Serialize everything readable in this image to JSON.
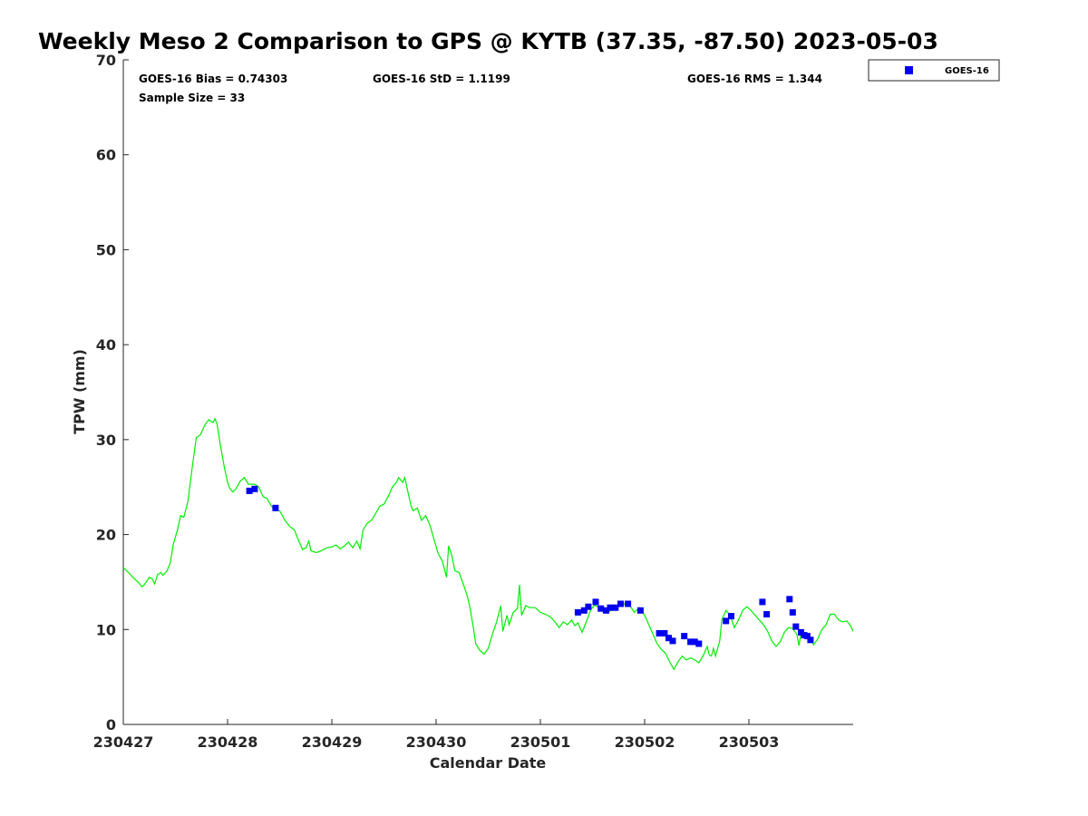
{
  "chart_data": {
    "type": "scatter",
    "title": "Weekly Meso 2 Comparison to GPS @ KYTB (37.35, -87.50) 2023-05-03",
    "xlabel": "Calendar Date",
    "ylabel": "TPW (mm)",
    "x_tick_labels": [
      "230427",
      "230428",
      "230429",
      "230430",
      "230501",
      "230502",
      "230503"
    ],
    "xlim": [
      0,
      7
    ],
    "ylim": [
      0,
      70
    ],
    "y_ticks": [
      0,
      10,
      20,
      30,
      40,
      50,
      60,
      70
    ],
    "grid": false,
    "legend_position": "top-right, outside plot",
    "stats": {
      "bias": "GOES-16 Bias = 0.74303",
      "std": "GOES-16 StD = 1.1199",
      "rms": "GOES-16 RMS = 1.344",
      "sample_size": "Sample Size = 33"
    },
    "series": [
      {
        "name": "GOES-16",
        "kind": "scatter",
        "marker": "square",
        "color": "#0000ee",
        "legend": true,
        "points": [
          [
            1.21,
            24.6
          ],
          [
            1.26,
            24.8
          ],
          [
            1.46,
            22.8
          ],
          [
            4.36,
            11.8
          ],
          [
            4.42,
            12.0
          ],
          [
            4.46,
            12.4
          ],
          [
            4.53,
            12.9
          ],
          [
            4.58,
            12.2
          ],
          [
            4.63,
            12.0
          ],
          [
            4.67,
            12.3
          ],
          [
            4.72,
            12.3
          ],
          [
            4.77,
            12.7
          ],
          [
            4.84,
            12.7
          ],
          [
            4.96,
            12.0
          ],
          [
            5.14,
            9.6
          ],
          [
            5.19,
            9.6
          ],
          [
            5.23,
            9.1
          ],
          [
            5.27,
            8.8
          ],
          [
            5.38,
            9.3
          ],
          [
            5.44,
            8.7
          ],
          [
            5.48,
            8.7
          ],
          [
            5.52,
            8.5
          ],
          [
            5.78,
            10.9
          ],
          [
            5.83,
            11.4
          ],
          [
            6.13,
            12.9
          ],
          [
            6.17,
            11.6
          ],
          [
            6.39,
            13.2
          ],
          [
            6.42,
            11.8
          ],
          [
            6.45,
            10.3
          ],
          [
            6.5,
            9.7
          ],
          [
            6.53,
            9.4
          ],
          [
            6.56,
            9.3
          ],
          [
            6.59,
            8.9
          ]
        ]
      },
      {
        "name": "",
        "kind": "line",
        "color": "#00ee00",
        "legend": false,
        "points": [
          [
            0.0,
            16.5
          ],
          [
            0.05,
            16.0
          ],
          [
            0.1,
            15.4
          ],
          [
            0.15,
            14.9
          ],
          [
            0.18,
            14.5
          ],
          [
            0.2,
            14.7
          ],
          [
            0.25,
            15.5
          ],
          [
            0.28,
            15.3
          ],
          [
            0.3,
            14.8
          ],
          [
            0.33,
            15.8
          ],
          [
            0.36,
            16.0
          ],
          [
            0.38,
            15.7
          ],
          [
            0.42,
            16.2
          ],
          [
            0.45,
            17.0
          ],
          [
            0.48,
            19.0
          ],
          [
            0.52,
            20.5
          ],
          [
            0.55,
            22.0
          ],
          [
            0.58,
            21.8
          ],
          [
            0.62,
            23.5
          ],
          [
            0.66,
            27.0
          ],
          [
            0.7,
            30.2
          ],
          [
            0.74,
            30.5
          ],
          [
            0.78,
            31.5
          ],
          [
            0.82,
            32.1
          ],
          [
            0.86,
            31.8
          ],
          [
            0.88,
            32.2
          ],
          [
            0.9,
            31.6
          ],
          [
            0.93,
            29.5
          ],
          [
            0.97,
            27.0
          ],
          [
            1.0,
            25.5
          ],
          [
            1.02,
            24.9
          ],
          [
            1.05,
            24.5
          ],
          [
            1.08,
            24.8
          ],
          [
            1.12,
            25.6
          ],
          [
            1.16,
            26.0
          ],
          [
            1.2,
            25.3
          ],
          [
            1.26,
            25.3
          ],
          [
            1.3,
            25.0
          ],
          [
            1.34,
            24.0
          ],
          [
            1.38,
            23.8
          ],
          [
            1.42,
            23.0
          ],
          [
            1.46,
            22.6
          ],
          [
            1.5,
            22.5
          ],
          [
            1.55,
            21.5
          ],
          [
            1.6,
            20.8
          ],
          [
            1.64,
            20.5
          ],
          [
            1.68,
            19.4
          ],
          [
            1.72,
            18.4
          ],
          [
            1.75,
            18.6
          ],
          [
            1.78,
            19.3
          ],
          [
            1.8,
            18.3
          ],
          [
            1.85,
            18.1
          ],
          [
            1.9,
            18.3
          ],
          [
            1.95,
            18.6
          ],
          [
            2.0,
            18.7
          ],
          [
            2.04,
            18.9
          ],
          [
            2.08,
            18.5
          ],
          [
            2.12,
            18.8
          ],
          [
            2.16,
            19.2
          ],
          [
            2.2,
            18.6
          ],
          [
            2.24,
            19.3
          ],
          [
            2.27,
            18.5
          ],
          [
            2.3,
            20.5
          ],
          [
            2.34,
            21.2
          ],
          [
            2.38,
            21.5
          ],
          [
            2.42,
            22.2
          ],
          [
            2.46,
            23.0
          ],
          [
            2.5,
            23.2
          ],
          [
            2.54,
            24.0
          ],
          [
            2.58,
            25.0
          ],
          [
            2.62,
            25.5
          ],
          [
            2.64,
            26.0
          ],
          [
            2.68,
            25.5
          ],
          [
            2.7,
            26.0
          ],
          [
            2.73,
            24.5
          ],
          [
            2.76,
            23.0
          ],
          [
            2.78,
            22.5
          ],
          [
            2.82,
            22.8
          ],
          [
            2.86,
            21.5
          ],
          [
            2.9,
            22.0
          ],
          [
            2.94,
            21.0
          ],
          [
            2.98,
            19.5
          ],
          [
            3.02,
            18.0
          ],
          [
            3.06,
            17.2
          ],
          [
            3.1,
            15.5
          ],
          [
            3.12,
            18.8
          ],
          [
            3.15,
            17.8
          ],
          [
            3.18,
            16.2
          ],
          [
            3.22,
            16.0
          ],
          [
            3.26,
            14.8
          ],
          [
            3.3,
            13.5
          ],
          [
            3.33,
            12.0
          ],
          [
            3.36,
            10.0
          ],
          [
            3.38,
            8.5
          ],
          [
            3.42,
            7.8
          ],
          [
            3.46,
            7.4
          ],
          [
            3.5,
            8.0
          ],
          [
            3.54,
            9.5
          ],
          [
            3.58,
            10.8
          ],
          [
            3.62,
            12.5
          ],
          [
            3.64,
            9.8
          ],
          [
            3.68,
            11.5
          ],
          [
            3.7,
            10.5
          ],
          [
            3.74,
            11.8
          ],
          [
            3.78,
            12.2
          ],
          [
            3.8,
            14.7
          ],
          [
            3.82,
            11.5
          ],
          [
            3.86,
            12.5
          ],
          [
            3.9,
            12.3
          ],
          [
            3.95,
            12.3
          ],
          [
            4.0,
            11.8
          ],
          [
            4.05,
            11.6
          ],
          [
            4.1,
            11.3
          ],
          [
            4.14,
            10.8
          ],
          [
            4.18,
            10.2
          ],
          [
            4.22,
            10.8
          ],
          [
            4.26,
            10.5
          ],
          [
            4.3,
            11.0
          ],
          [
            4.33,
            10.4
          ],
          [
            4.36,
            10.7
          ],
          [
            4.4,
            9.7
          ],
          [
            4.44,
            10.8
          ],
          [
            4.48,
            12.0
          ],
          [
            4.52,
            12.6
          ],
          [
            4.56,
            12.3
          ],
          [
            4.6,
            12.0
          ],
          [
            4.65,
            11.8
          ],
          [
            4.7,
            12.2
          ],
          [
            4.74,
            12.5
          ],
          [
            4.78,
            12.5
          ],
          [
            4.82,
            12.8
          ],
          [
            4.86,
            12.5
          ],
          [
            4.9,
            11.8
          ],
          [
            4.95,
            12.3
          ],
          [
            5.0,
            11.5
          ],
          [
            5.04,
            10.5
          ],
          [
            5.08,
            9.5
          ],
          [
            5.12,
            8.5
          ],
          [
            5.16,
            7.9
          ],
          [
            5.2,
            7.5
          ],
          [
            5.24,
            6.6
          ],
          [
            5.28,
            5.8
          ],
          [
            5.32,
            6.6
          ],
          [
            5.36,
            7.2
          ],
          [
            5.4,
            6.8
          ],
          [
            5.44,
            7.0
          ],
          [
            5.48,
            6.8
          ],
          [
            5.52,
            6.5
          ],
          [
            5.56,
            7.2
          ],
          [
            5.6,
            8.2
          ],
          [
            5.62,
            7.3
          ],
          [
            5.64,
            7.2
          ],
          [
            5.66,
            8.0
          ],
          [
            5.68,
            7.2
          ],
          [
            5.72,
            8.8
          ],
          [
            5.74,
            11.0
          ],
          [
            5.78,
            12.0
          ],
          [
            5.82,
            11.5
          ],
          [
            5.86,
            10.2
          ],
          [
            5.9,
            11.0
          ],
          [
            5.94,
            12.0
          ],
          [
            5.98,
            12.4
          ],
          [
            6.02,
            12.0
          ],
          [
            6.06,
            11.5
          ],
          [
            6.1,
            11.0
          ],
          [
            6.14,
            10.5
          ],
          [
            6.18,
            9.8
          ],
          [
            6.22,
            8.8
          ],
          [
            6.26,
            8.2
          ],
          [
            6.3,
            8.7
          ],
          [
            6.34,
            9.7
          ],
          [
            6.38,
            10.2
          ],
          [
            6.42,
            10.1
          ],
          [
            6.46,
            9.5
          ],
          [
            6.48,
            8.3
          ],
          [
            6.5,
            9.6
          ],
          [
            6.54,
            9.6
          ],
          [
            6.58,
            9.2
          ],
          [
            6.62,
            8.4
          ],
          [
            6.66,
            9.0
          ],
          [
            6.7,
            10.0
          ],
          [
            6.74,
            10.5
          ],
          [
            6.78,
            11.6
          ],
          [
            6.82,
            11.6
          ],
          [
            6.86,
            11.0
          ],
          [
            6.9,
            10.8
          ],
          [
            6.94,
            10.9
          ],
          [
            6.98,
            10.3
          ],
          [
            7.0,
            9.8
          ]
        ]
      }
    ]
  }
}
